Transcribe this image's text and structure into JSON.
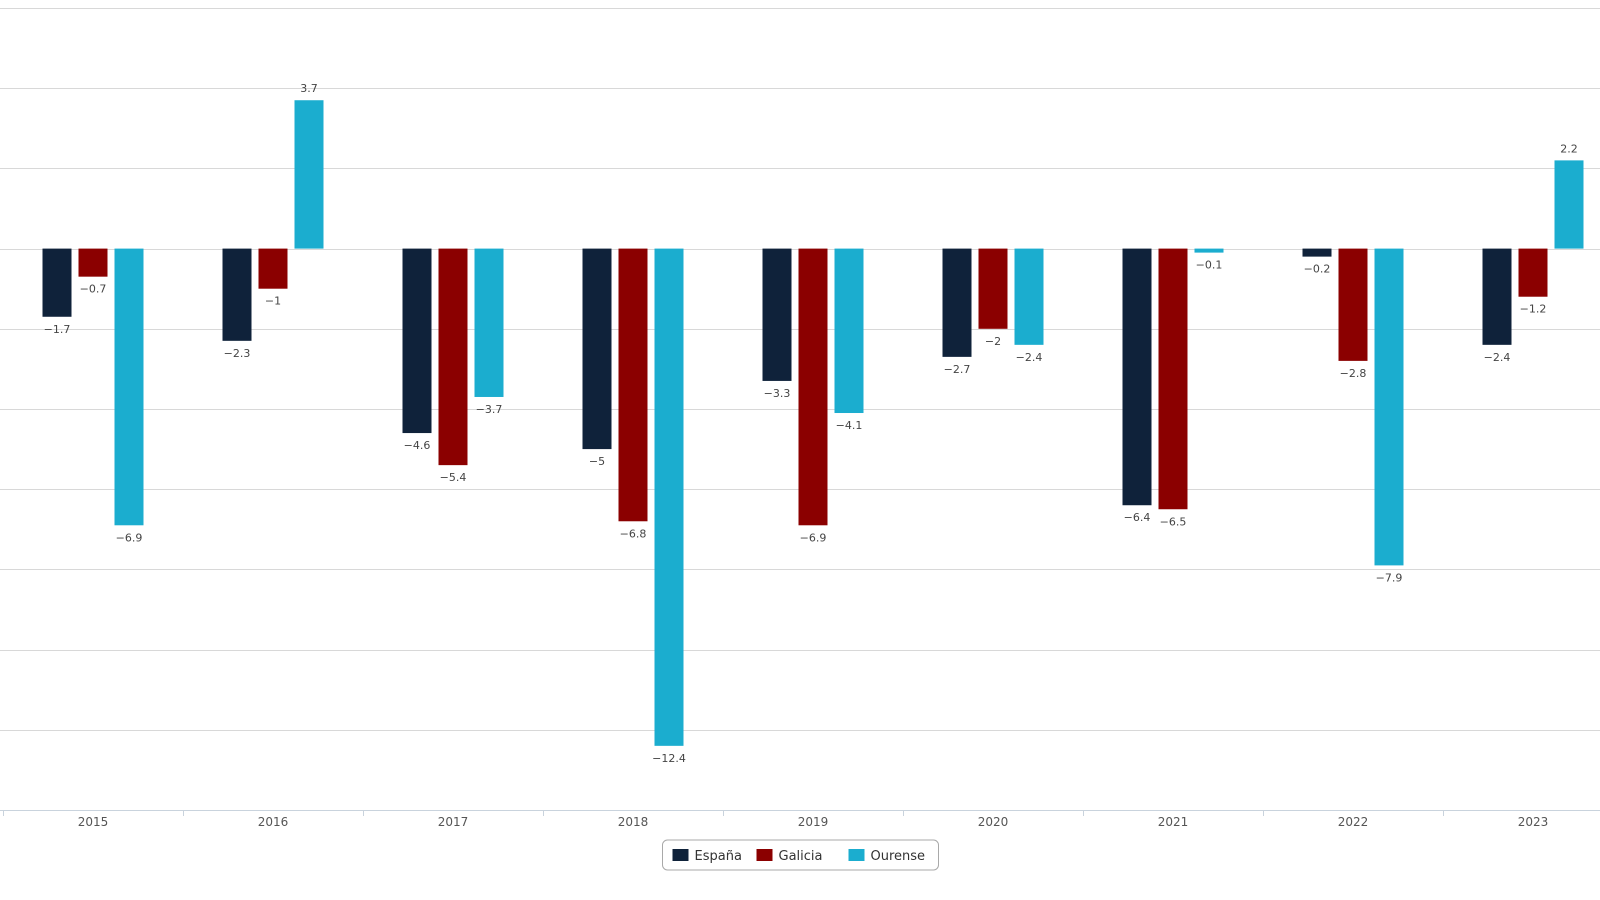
{
  "chart_data": {
    "type": "bar",
    "categories": [
      "2015",
      "2016",
      "2017",
      "2018",
      "2019",
      "2020",
      "2021",
      "2022",
      "2023"
    ],
    "series": [
      {
        "name": "España",
        "color": "#0f223a",
        "values": [
          -1.7,
          -2.3,
          -4.6,
          -5,
          -3.3,
          -2.7,
          -6.4,
          -0.2,
          -2.4
        ]
      },
      {
        "name": "Galicia",
        "color": "#8b0000",
        "values": [
          -0.7,
          -1,
          -5.4,
          -6.8,
          -6.9,
          -2,
          -6.5,
          -2.8,
          -1.2
        ]
      },
      {
        "name": "Ourense",
        "color": "#1badcf",
        "values": [
          -6.9,
          3.7,
          -3.7,
          -12.4,
          -4.1,
          -2.4,
          -0.1,
          -7.9,
          2.2
        ]
      }
    ],
    "data_labels": [
      [
        "−1.7",
        "−2.3",
        "−4.6",
        "−5",
        "−3.3",
        "−2.7",
        "−6.4",
        "−0.2",
        "−2.4"
      ],
      [
        "−0.7",
        "−1",
        "−5.4",
        "−6.8",
        "−6.9",
        "−2",
        "−6.5",
        "−2.8",
        "−1.2"
      ],
      [
        "−6.9",
        "3.7",
        "−3.7",
        "−12.4",
        "−4.1",
        "−2.4",
        "−0.1",
        "−7.9",
        "2.2"
      ]
    ],
    "ylim": [
      -14,
      6
    ],
    "grid_step": 2,
    "grid": true,
    "legend_position": "bottom-center",
    "title": "",
    "xlabel": "",
    "ylabel": ""
  }
}
